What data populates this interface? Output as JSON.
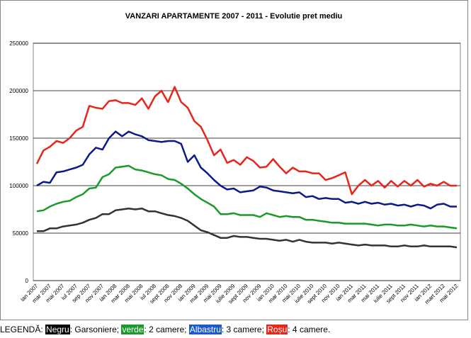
{
  "chart_data": {
    "type": "line",
    "title": "VANZARI APARTAMENTE 2007 - 2011 - Evolutie pret mediu",
    "categories": [
      "ian 2007",
      null,
      "mar 2007",
      null,
      "mai 2007",
      null,
      "iul 2007",
      null,
      "sep 2007",
      null,
      "nov 2007",
      null,
      "ian 2008",
      null,
      "mar 2008",
      null,
      "mai 2008",
      null,
      "iul 2008",
      null,
      "sept 2008",
      null,
      "nov 2008",
      null,
      "ian 2009",
      null,
      "mar 2009",
      null,
      "mai 2009",
      null,
      "iulie 2009",
      null,
      "sept 2009",
      null,
      "nov 2009",
      null,
      "ian 2010",
      null,
      "mar 2010",
      null,
      "mai 2010",
      null,
      "iulie 2010",
      null,
      "sept 2010",
      null,
      "nov 2010",
      null,
      "ian 2011",
      null,
      "mar 2011",
      null,
      "mai 2011",
      null,
      "iulie 2011",
      null,
      "sept 2011",
      null,
      "nov 2011",
      null,
      "ian 2012",
      null,
      "mart 2012",
      null,
      "mai 2012"
    ],
    "ylim": [
      0,
      250000
    ],
    "yticks": [
      0,
      50000,
      100000,
      150000,
      200000,
      250000
    ],
    "grid": true,
    "legend_title": "LEGENDĂ:",
    "series": [
      {
        "name": "Negru",
        "description": ": Garsoniere;",
        "color": "#333333",
        "values": [
          52000,
          52000,
          55000,
          55000,
          57000,
          58000,
          59000,
          61000,
          64000,
          66000,
          70000,
          70000,
          74000,
          75000,
          76000,
          75000,
          76000,
          73000,
          73000,
          71000,
          69000,
          68000,
          66000,
          63000,
          58000,
          53000,
          51000,
          48000,
          45000,
          45000,
          47000,
          46000,
          46000,
          45000,
          44000,
          44000,
          43000,
          42000,
          43000,
          41000,
          43000,
          41000,
          40000,
          40000,
          40000,
          39000,
          40000,
          39000,
          38000,
          37000,
          38000,
          37000,
          37000,
          37000,
          36000,
          36000,
          37000,
          36000,
          36000,
          37000,
          36000,
          36000,
          36000,
          36000,
          35000
        ]
      },
      {
        "name": "verde",
        "description": ": 2 camere;",
        "color": "#1a9a2a",
        "values": [
          73000,
          74000,
          78000,
          81000,
          83000,
          84000,
          88000,
          91000,
          97000,
          98000,
          109000,
          112000,
          119000,
          120000,
          121000,
          117000,
          116000,
          114000,
          112000,
          111000,
          107000,
          106000,
          102000,
          97000,
          91000,
          86000,
          82000,
          78000,
          70000,
          70000,
          71000,
          69000,
          69000,
          69000,
          67000,
          71000,
          69000,
          67000,
          68000,
          67000,
          67000,
          64000,
          64000,
          63000,
          62000,
          61000,
          61000,
          60000,
          60000,
          60000,
          60000,
          59000,
          58000,
          59000,
          59000,
          58000,
          58000,
          59000,
          58000,
          57000,
          58000,
          57000,
          57000,
          56000,
          55000
        ]
      },
      {
        "name": "Albastru",
        "description": ": 3 camere;",
        "color": "#0a1a8a",
        "values": [
          100000,
          104000,
          103000,
          114000,
          115000,
          117000,
          119000,
          122000,
          133000,
          140000,
          138000,
          150000,
          157000,
          152000,
          157000,
          154000,
          152000,
          148000,
          147000,
          146000,
          147000,
          147000,
          144000,
          125000,
          132000,
          119000,
          113000,
          106000,
          100000,
          96000,
          97000,
          93000,
          94000,
          95000,
          99000,
          98000,
          95000,
          94000,
          93000,
          92000,
          93000,
          88000,
          89000,
          86000,
          87000,
          86000,
          86000,
          82000,
          83000,
          81000,
          83000,
          81000,
          82000,
          80000,
          81000,
          79000,
          80000,
          78000,
          80000,
          79000,
          76000,
          80000,
          81000,
          78000,
          78000
        ]
      },
      {
        "name": "Roșu",
        "description": ": 4 camere.",
        "color": "#e8251a",
        "values": [
          123000,
          137000,
          141000,
          147000,
          145000,
          150000,
          158000,
          162000,
          184000,
          182000,
          181000,
          189000,
          190000,
          187000,
          187000,
          185000,
          192000,
          181000,
          194000,
          200000,
          188000,
          204000,
          188000,
          182000,
          168000,
          162000,
          148000,
          132000,
          138000,
          124000,
          127000,
          122000,
          130000,
          126000,
          119000,
          120000,
          128000,
          120000,
          113000,
          119000,
          115000,
          115000,
          113000,
          113000,
          106000,
          108000,
          111000,
          114000,
          91000,
          100000,
          106000,
          100000,
          105000,
          98000,
          105000,
          99000,
          105000,
          100000,
          106000,
          99000,
          102000,
          100000,
          104000,
          100000,
          100000
        ]
      }
    ]
  }
}
